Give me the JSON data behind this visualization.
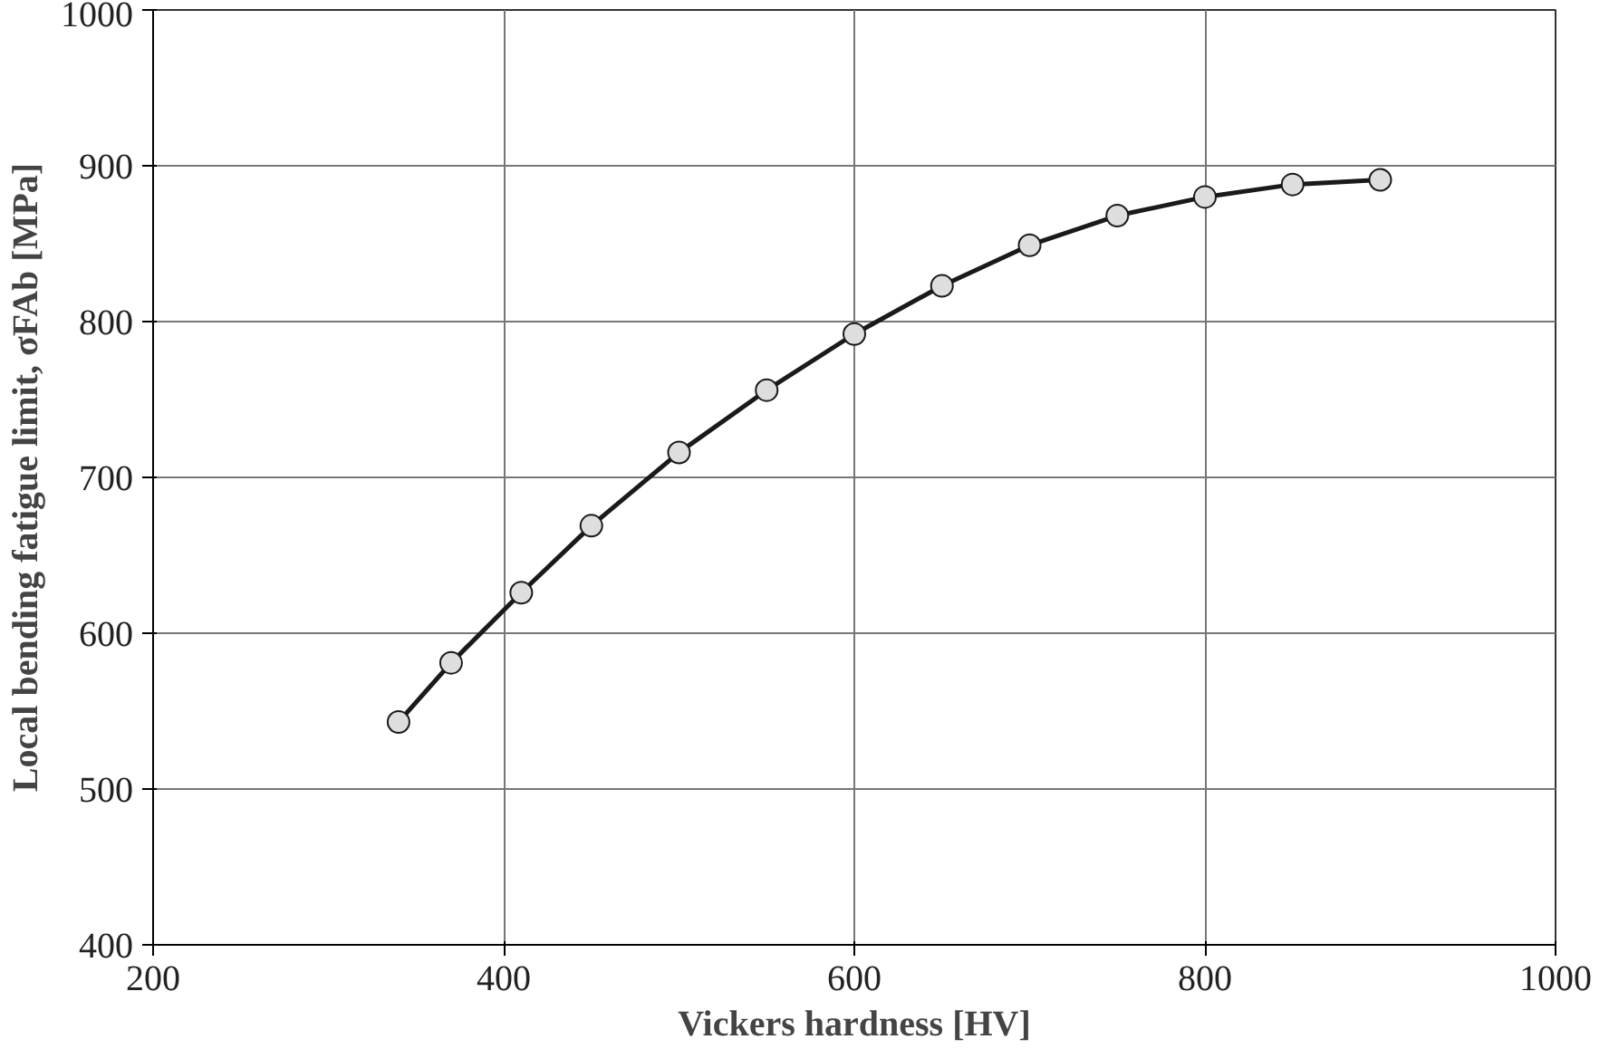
{
  "chart_data": {
    "type": "line",
    "xlabel": "Vickers hardness [HV]",
    "ylabel": "Local bending fatigue limit, σFAb [MPa]",
    "x": [
      340,
      370,
      410,
      450,
      500,
      550,
      600,
      650,
      700,
      750,
      800,
      850,
      900
    ],
    "series": [
      {
        "color": "#1a1a1a",
        "values": [
          543,
          581,
          626,
          669,
          716,
          756,
          792,
          823,
          849,
          868,
          880,
          888,
          891
        ]
      }
    ],
    "xlim": [
      200,
      1000
    ],
    "ylim": [
      400,
      1000
    ],
    "xticks": [
      200,
      400,
      600,
      800,
      1000
    ],
    "yticks": [
      400,
      500,
      600,
      700,
      800,
      900,
      1000
    ],
    "grid": true,
    "marker": "circle",
    "line_style": "solid"
  }
}
